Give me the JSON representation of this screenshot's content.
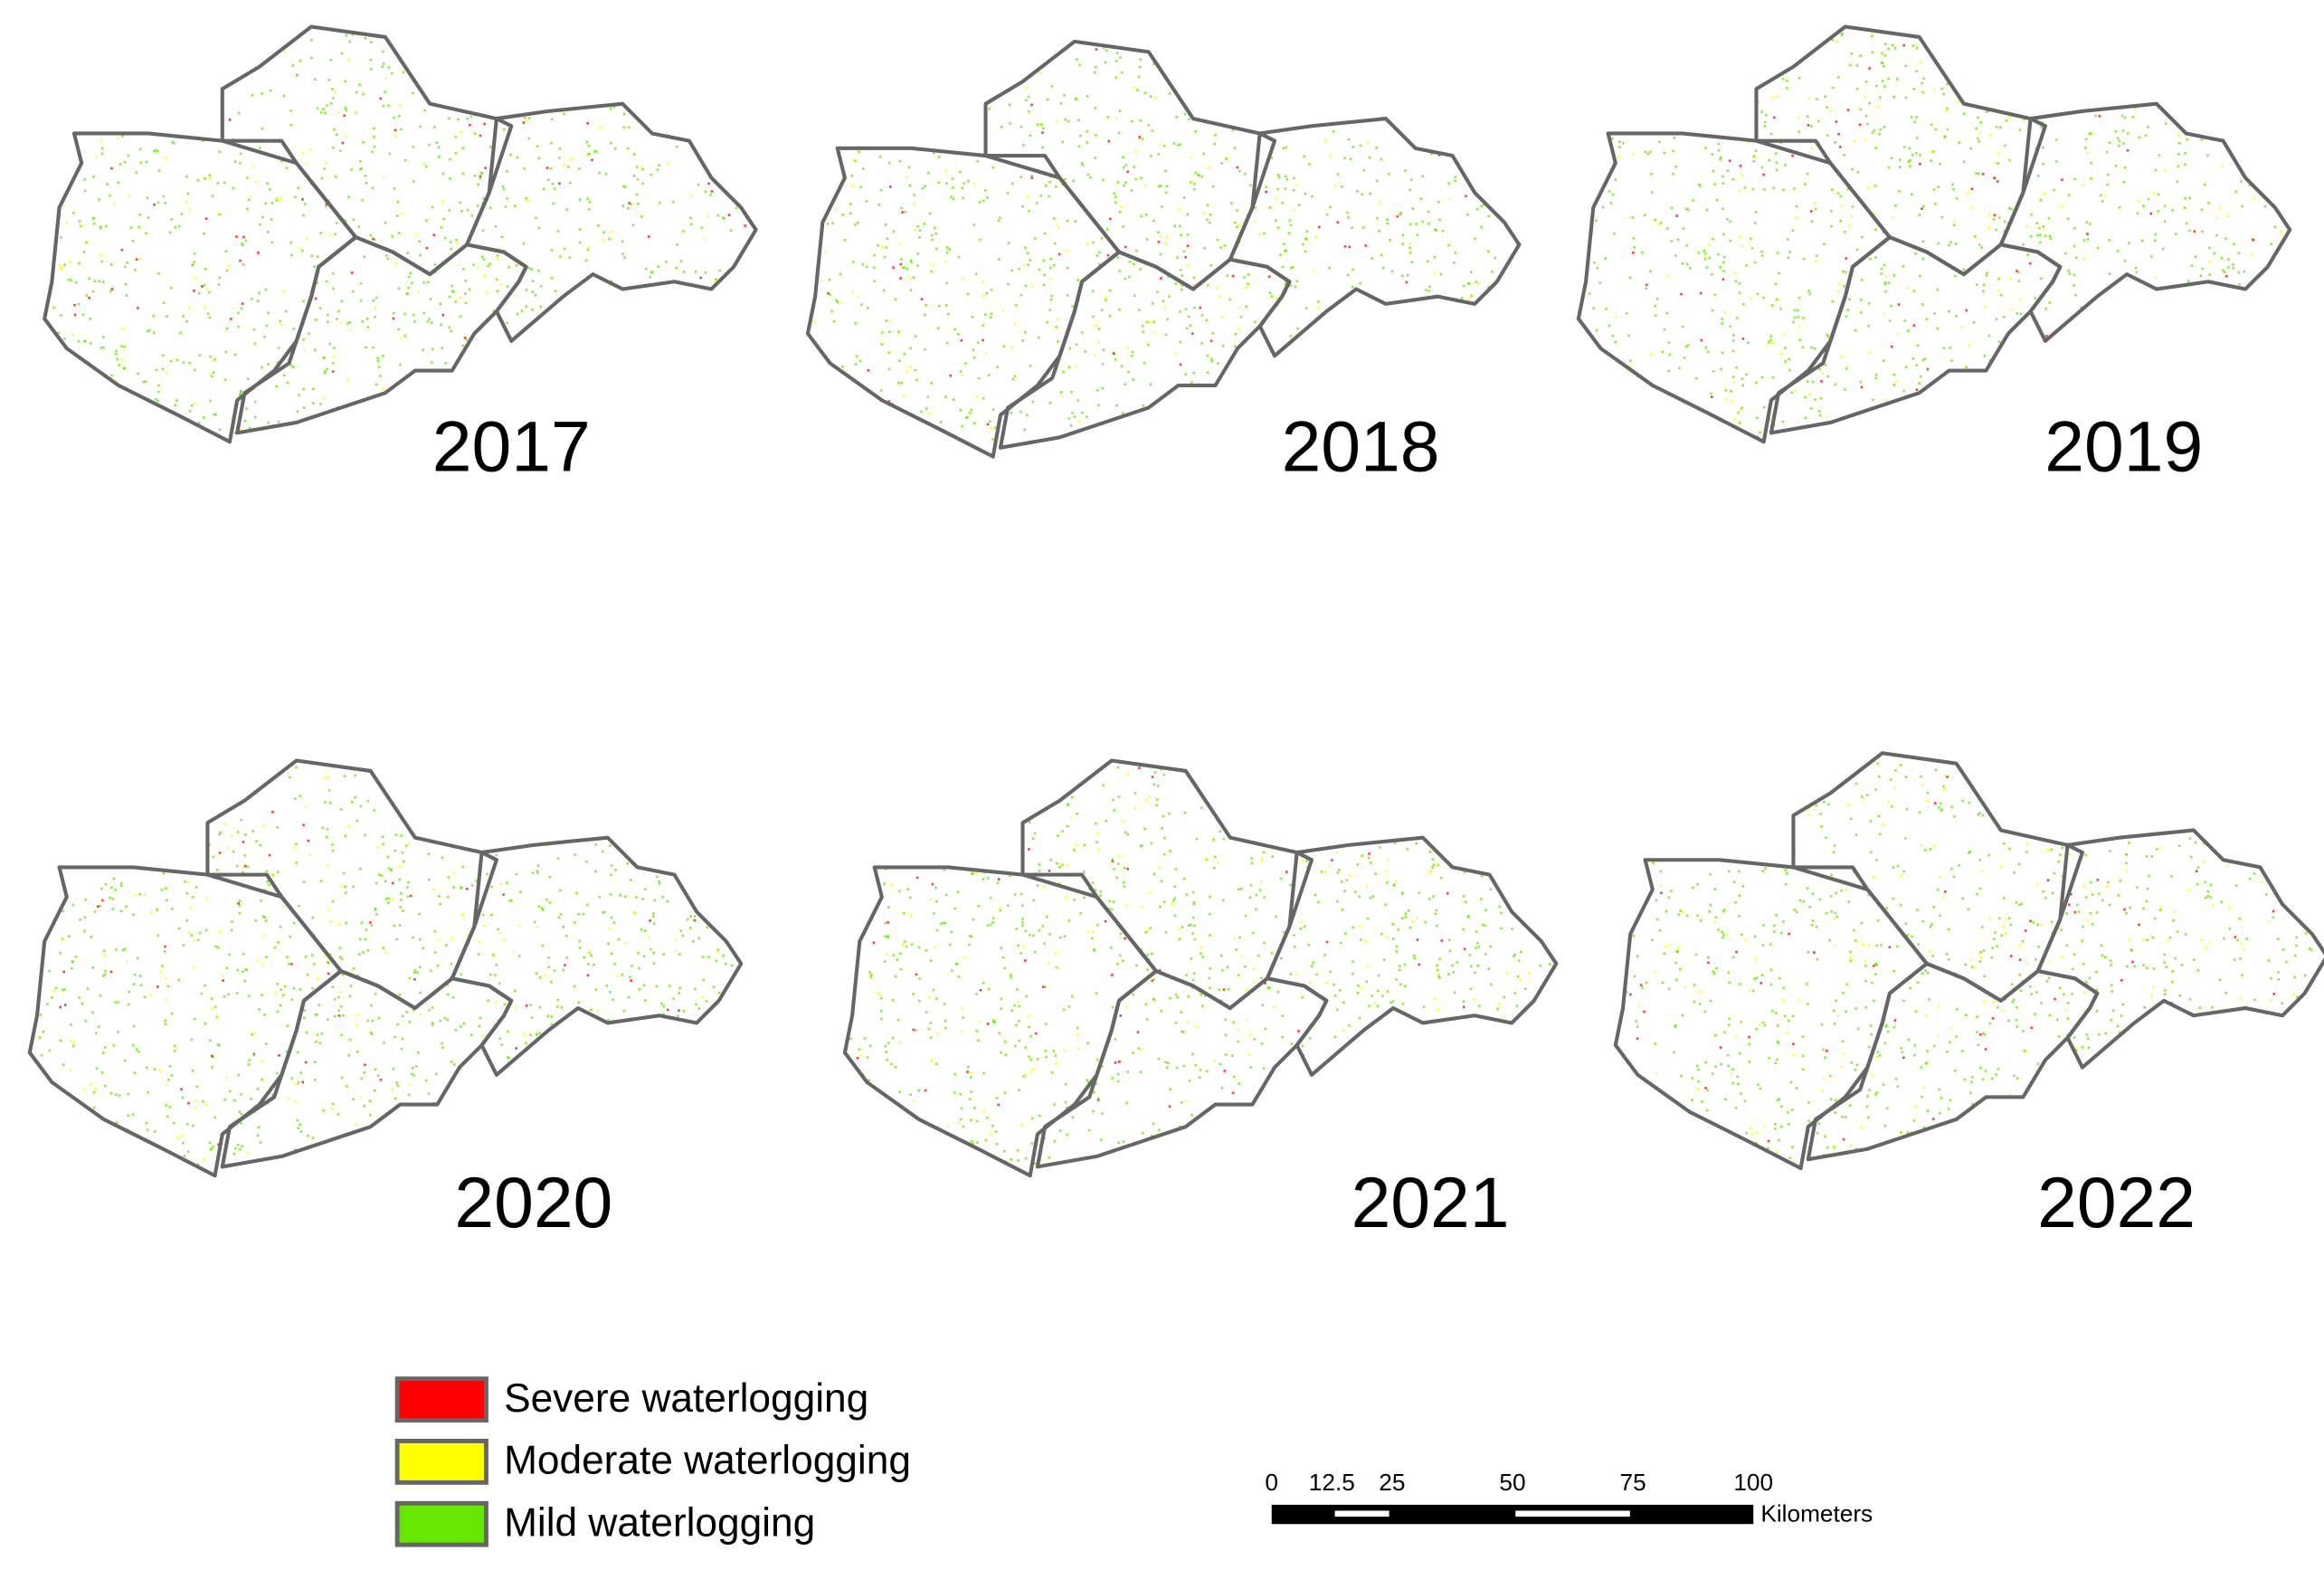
{
  "maps": [
    {
      "year": "2017"
    },
    {
      "year": "2018"
    },
    {
      "year": "2019"
    },
    {
      "year": "2020"
    },
    {
      "year": "2021"
    },
    {
      "year": "2022"
    }
  ],
  "legend": [
    {
      "label": "Severe waterlogging",
      "color": "#ff0000"
    },
    {
      "label": "Moderate waterlogging",
      "color": "#ffff00"
    },
    {
      "label": "Mild waterlogging",
      "color": "#66e600"
    }
  ],
  "scale_bar": {
    "ticks": [
      0,
      12.5,
      25,
      50,
      75,
      100
    ],
    "unit": "Kilometers"
  }
}
